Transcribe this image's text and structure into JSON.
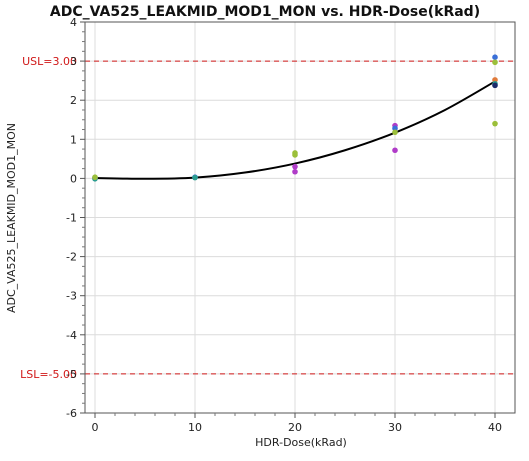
{
  "chart_data": {
    "type": "scatter",
    "title": "ADC_VA525_LEAKMID_MOD1_MON vs. HDR-Dose(kRad)",
    "xlabel": "HDR-Dose(kRad)",
    "ylabel": "ADC_VA525_LEAKMID_MOD1_MON",
    "xlim": [
      -1,
      42
    ],
    "ylim": [
      -6,
      4
    ],
    "x_ticks": [
      "0",
      "10",
      "20",
      "30",
      "40"
    ],
    "y_ticks": [
      "-6",
      "-5",
      "-4",
      "-3",
      "-2",
      "-1",
      "0",
      "1",
      "2",
      "3",
      "4"
    ],
    "grid": true,
    "reference_lines": [
      {
        "label": "USL=3.00",
        "y": 3.0,
        "color": "#d01818"
      },
      {
        "label": "LSL=-5.00",
        "y": -5.0,
        "color": "#d01818"
      }
    ],
    "points": [
      {
        "x": 0,
        "y": 0.02,
        "color": "#3a6fd8"
      },
      {
        "x": 0,
        "y": 0.0,
        "color": "#b03cc8"
      },
      {
        "x": 0,
        "y": -0.01,
        "color": "#2a9d8f"
      },
      {
        "x": 0,
        "y": 0.03,
        "color": "#9bbf3a"
      },
      {
        "x": 10,
        "y": 0.03,
        "color": "#3a6fd8"
      },
      {
        "x": 10,
        "y": 0.02,
        "color": "#2a9d8f"
      },
      {
        "x": 20,
        "y": 0.65,
        "color": "#9bbf3a"
      },
      {
        "x": 20,
        "y": 0.6,
        "color": "#9bbf3a"
      },
      {
        "x": 20,
        "y": 0.3,
        "color": "#b03cc8"
      },
      {
        "x": 20,
        "y": 0.17,
        "color": "#b03cc8"
      },
      {
        "x": 30,
        "y": 1.35,
        "color": "#b03cc8"
      },
      {
        "x": 30,
        "y": 1.28,
        "color": "#3a6fd8"
      },
      {
        "x": 30,
        "y": 1.18,
        "color": "#9bbf3a"
      },
      {
        "x": 30,
        "y": 0.72,
        "color": "#b03cc8"
      },
      {
        "x": 40,
        "y": 3.1,
        "color": "#3a6fd8"
      },
      {
        "x": 40,
        "y": 2.97,
        "color": "#9bbf3a"
      },
      {
        "x": 40,
        "y": 2.52,
        "color": "#e07a3a"
      },
      {
        "x": 40,
        "y": 2.42,
        "color": "#2a9d8f"
      },
      {
        "x": 40,
        "y": 2.38,
        "color": "#1b2a6b"
      },
      {
        "x": 40,
        "y": 1.4,
        "color": "#9bbf3a"
      }
    ],
    "fit": {
      "x": [
        0,
        5,
        10,
        15,
        20,
        25,
        30,
        35,
        40
      ],
      "y": [
        0.01,
        -0.01,
        0.02,
        0.15,
        0.38,
        0.72,
        1.17,
        1.75,
        2.48
      ],
      "color": "#000000"
    }
  }
}
